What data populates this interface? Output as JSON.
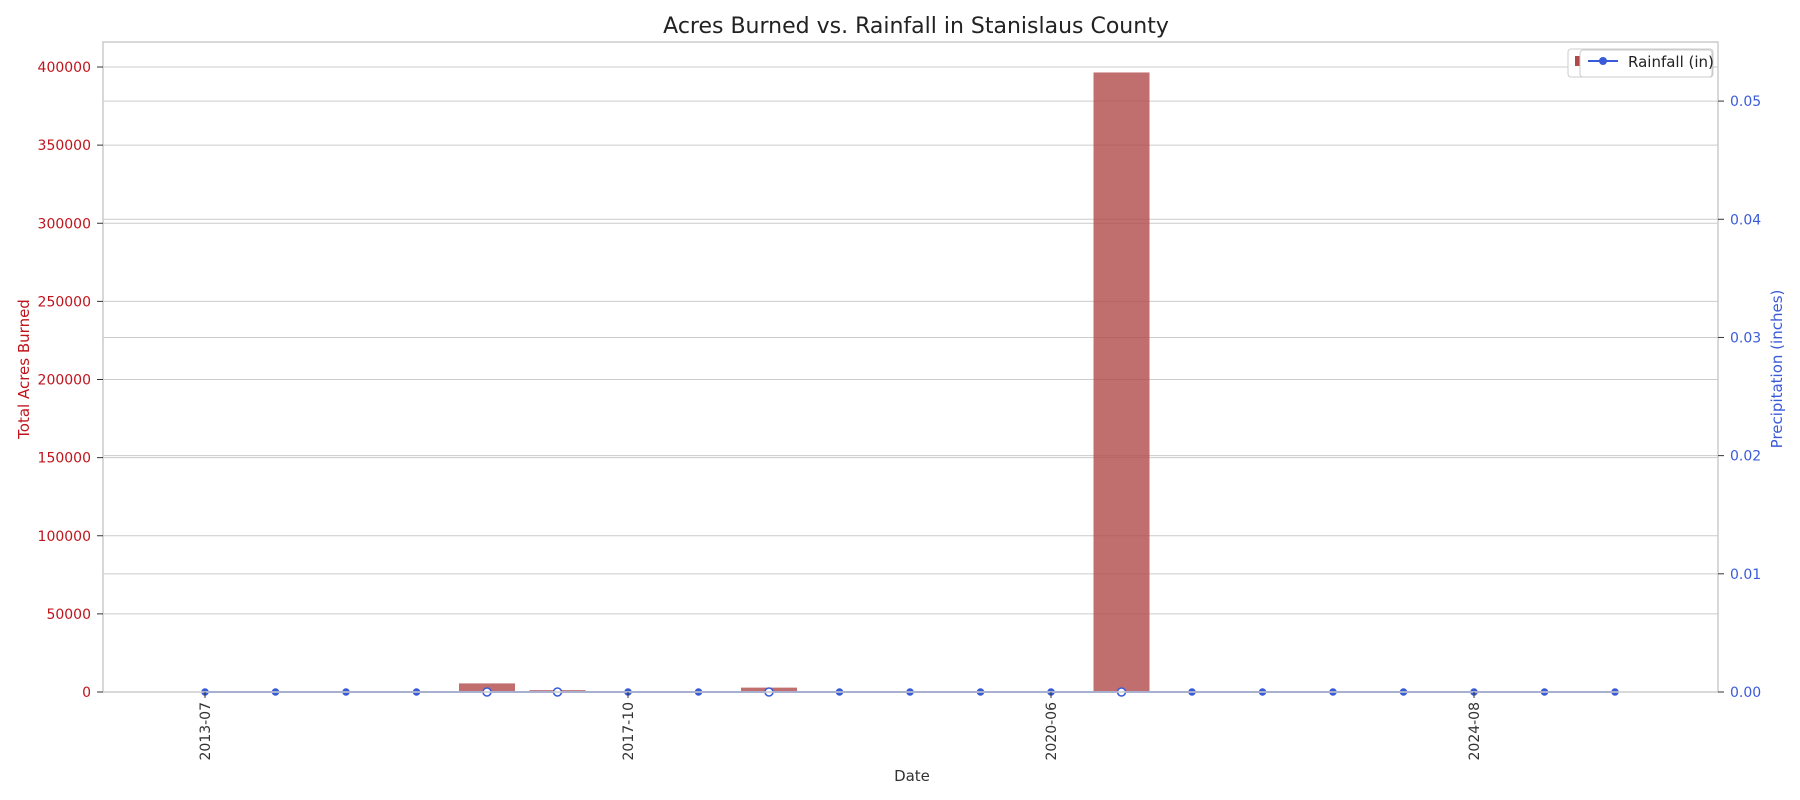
{
  "chart_data": {
    "type": "bar",
    "title": "Acres Burned vs. Rainfall in Stanislaus County",
    "xlabel": "Date",
    "ylabel_left": "Total Acres Burned",
    "ylabel_right": "Precipitation (inches)",
    "ylim_left": [
      0,
      416000
    ],
    "ylim_right": [
      0,
      0.055
    ],
    "left_ticks": [
      0,
      50000,
      100000,
      150000,
      200000,
      250000,
      300000,
      350000,
      400000
    ],
    "right_ticks": [
      0.0,
      0.01,
      0.02,
      0.03,
      0.04,
      0.05
    ],
    "right_tick_labels": [
      "0.00",
      "0.01",
      "0.02",
      "0.03",
      "0.04",
      "0.05"
    ],
    "x_tick_labels": [
      {
        "label": "2013-07",
        "index": 0
      },
      {
        "label": "2017-10",
        "index": 6
      },
      {
        "label": "2020-06",
        "index": 12
      },
      {
        "label": "2024-08",
        "index": 18
      }
    ],
    "categories_count": 21,
    "series": [
      {
        "name": "Acres Burned",
        "kind": "bar",
        "axis": "left",
        "color": "#b04a4a",
        "values": [
          0,
          0,
          0,
          0,
          5500,
          1200,
          0,
          0,
          2800,
          0,
          0,
          0,
          0,
          396500,
          0,
          0,
          0,
          0,
          0,
          0,
          0
        ]
      },
      {
        "name": "Rainfall (in)",
        "kind": "line",
        "axis": "right",
        "color": "#3a5bd9",
        "values": [
          0,
          0,
          0,
          0,
          0,
          0,
          0,
          0,
          0,
          0,
          0,
          0,
          0,
          0,
          0,
          0,
          0,
          0,
          0,
          0,
          0
        ]
      }
    ],
    "legend": {
      "position": "top-right",
      "visible_label": "Rainfall (in)"
    },
    "colors": {
      "left_axis": "#c0141c",
      "right_axis": "#3a5bd9",
      "grid": "#cccccc"
    }
  }
}
